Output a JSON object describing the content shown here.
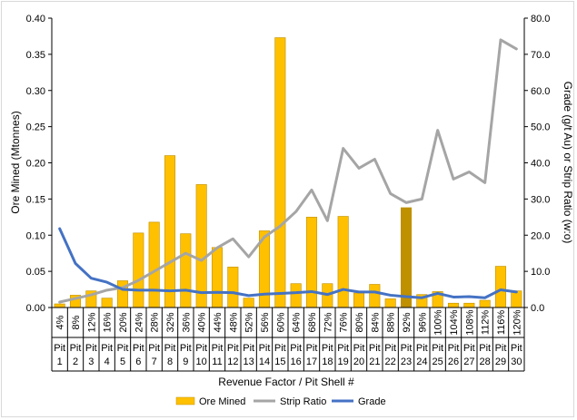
{
  "chart_data": {
    "type": "bar",
    "title": "",
    "xlabel": "Revenue Factor / Pit Shell #",
    "ylabel_left": "Ore Mined (Mtonnes)",
    "ylabel_right": "Grade (g/t Au) or Strip Ratio (w:o)",
    "ylim_left": [
      0,
      0.4
    ],
    "ylim_right": [
      0,
      80
    ],
    "yticks_left": [
      "0.00",
      "0.05",
      "0.10",
      "0.15",
      "0.20",
      "0.25",
      "0.30",
      "0.35",
      "0.40"
    ],
    "yticks_right": [
      "0.0",
      "10.0",
      "20.0",
      "30.0",
      "40.0",
      "50.0",
      "60.0",
      "70.0",
      "80.0"
    ],
    "grid": false,
    "legend_position": "bottom",
    "categories": [
      "4%",
      "8%",
      "12%",
      "16%",
      "20%",
      "24%",
      "28%",
      "32%",
      "36%",
      "40%",
      "44%",
      "48%",
      "52%",
      "56%",
      "60%",
      "64%",
      "68%",
      "72%",
      "76%",
      "80%",
      "84%",
      "88%",
      "92%",
      "96%",
      "100%",
      "104%",
      "108%",
      "112%",
      "116%",
      "120%"
    ],
    "pit_shells": [
      "Pit 1",
      "Pit 2",
      "Pit 3",
      "Pit 4",
      "Pit 5",
      "Pit 6",
      "Pit 7",
      "Pit 8",
      "Pit 9",
      "Pit 10",
      "Pit 11",
      "Pit 12",
      "Pit 13",
      "Pit 14",
      "Pit 15",
      "Pit 16",
      "Pit 17",
      "Pit 18",
      "Pit 19",
      "Pit 20",
      "Pit 21",
      "Pit 22",
      "Pit 23",
      "Pit 24",
      "Pit 25",
      "Pit 26",
      "Pit 27",
      "Pit 28",
      "Pit 29",
      "Pit 30"
    ],
    "series": [
      {
        "name": "Ore Mined",
        "kind": "bar",
        "axis": "left",
        "color": "#ffc000",
        "highlight_color": "#bf9000",
        "highlight_index": 22,
        "values": [
          0.005,
          0.017,
          0.023,
          0.013,
          0.037,
          0.103,
          0.118,
          0.21,
          0.102,
          0.17,
          0.083,
          0.056,
          0.013,
          0.106,
          0.373,
          0.033,
          0.125,
          0.033,
          0.126,
          0.02,
          0.032,
          0.012,
          0.138,
          0.018,
          0.022,
          0.006,
          0.006,
          0.01,
          0.057,
          0.023
        ]
      },
      {
        "name": "Strip Ratio",
        "kind": "line",
        "axis": "right",
        "color": "#a5a5a5",
        "values": [
          1.5,
          2.5,
          3.5,
          4.8,
          5.5,
          7.5,
          10.0,
          12.5,
          15.0,
          13.0,
          16.5,
          19.0,
          14.0,
          19.5,
          22.5,
          26.5,
          32.5,
          24.0,
          44.0,
          38.5,
          41.0,
          31.5,
          29.0,
          30.0,
          49.0,
          35.5,
          37.5,
          34.5,
          74.0,
          71.5
        ]
      },
      {
        "name": "Grade",
        "kind": "line",
        "axis": "right",
        "color": "#4472c4",
        "values": [
          21.8,
          12.2,
          8.1,
          7.0,
          5.0,
          4.8,
          4.8,
          4.6,
          4.8,
          4.1,
          4.2,
          4.1,
          3.3,
          3.7,
          3.9,
          4.1,
          4.4,
          3.6,
          5.0,
          4.3,
          4.3,
          3.4,
          3.0,
          2.7,
          3.9,
          2.9,
          3.0,
          2.7,
          4.9,
          4.3
        ]
      }
    ]
  }
}
